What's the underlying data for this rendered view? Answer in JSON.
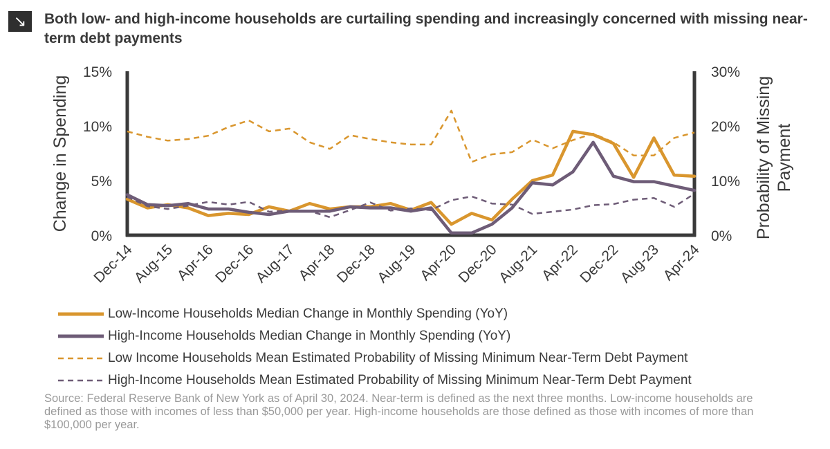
{
  "header": {
    "title": "Both low- and high-income households are curtailing spending and increasingly concerned with missing near-term debt payments",
    "icon": "arrow-down-right-icon"
  },
  "chart_data": {
    "type": "line",
    "title": "Both low- and high-income households are curtailing spending and increasingly concerned with missing near-term debt payments",
    "ylabel_left": "Change in Spending",
    "ylabel_right": "Probability of Missing Payment",
    "ylim_left": [
      0,
      15
    ],
    "ylim_right": [
      0,
      30
    ],
    "yticks_left": [
      "0%",
      "5%",
      "10%",
      "15%"
    ],
    "yticks_right": [
      "0%",
      "10%",
      "20%",
      "30%"
    ],
    "x_tick_labels": [
      "Dec-14",
      "Aug-15",
      "Apr-16",
      "Dec-16",
      "Aug-17",
      "Apr-18",
      "Dec-18",
      "Aug-19",
      "Apr-20",
      "Dec-20",
      "Aug-21",
      "Apr-22",
      "Dec-22",
      "Aug-23",
      "Apr-24"
    ],
    "x": [
      "Dec-14",
      "Apr-15",
      "Aug-15",
      "Dec-15",
      "Apr-16",
      "Aug-16",
      "Dec-16",
      "Apr-17",
      "Aug-17",
      "Dec-17",
      "Apr-18",
      "Aug-18",
      "Dec-18",
      "Apr-19",
      "Aug-19",
      "Dec-19",
      "Apr-20",
      "Aug-20",
      "Dec-20",
      "Apr-21",
      "Aug-21",
      "Dec-21",
      "Apr-22",
      "Aug-22",
      "Dec-22",
      "Apr-23",
      "Aug-23",
      "Dec-23",
      "Apr-24"
    ],
    "grid": false,
    "legend_position": "bottom",
    "series": [
      {
        "name": "Low-Income Households Median Change in Monthly Spending (YoY)",
        "axis": "left",
        "style": "solid",
        "color": "#d9962e",
        "values": [
          3.3,
          2.5,
          2.8,
          2.5,
          1.8,
          2.0,
          1.9,
          2.6,
          2.2,
          2.9,
          2.4,
          2.6,
          2.6,
          2.9,
          2.3,
          3.0,
          1.0,
          2.0,
          1.4,
          3.3,
          5.0,
          5.5,
          9.5,
          9.2,
          8.4,
          5.3,
          8.9,
          5.5,
          5.4
        ]
      },
      {
        "name": "High-Income Households Median Change in Monthly Spending (YoY)",
        "axis": "left",
        "style": "solid",
        "color": "#6e5c77",
        "values": [
          3.7,
          2.8,
          2.7,
          2.9,
          2.4,
          2.4,
          2.1,
          1.9,
          2.2,
          2.2,
          2.2,
          2.6,
          2.5,
          2.5,
          2.2,
          2.5,
          0.2,
          0.2,
          1.0,
          2.5,
          4.8,
          4.6,
          5.8,
          8.5,
          5.4,
          4.9,
          4.9,
          4.5,
          4.1
        ]
      },
      {
        "name": "Low Income Households Mean Estimated Probability of Missing Minimum Near-Term Debt Payment",
        "axis": "right",
        "style": "dashed",
        "color": "#d9962e",
        "values": [
          19.0,
          18.0,
          17.3,
          17.6,
          18.2,
          19.8,
          21.0,
          19.0,
          19.5,
          17.0,
          15.8,
          18.3,
          17.6,
          17.0,
          16.6,
          16.6,
          22.8,
          13.4,
          14.8,
          15.2,
          17.5,
          15.9,
          17.4,
          18.6,
          17.0,
          14.6,
          14.6,
          17.8,
          18.8
        ]
      },
      {
        "name": "High-Income Households Mean Estimated Probability of Missing Minimum Near-Term Debt Payment",
        "axis": "right",
        "style": "dashed",
        "color": "#6e5c77",
        "values": [
          7.0,
          5.3,
          4.8,
          5.4,
          6.1,
          5.6,
          6.1,
          4.3,
          4.5,
          4.4,
          3.3,
          4.6,
          6.0,
          4.5,
          4.9,
          4.6,
          6.4,
          7.1,
          5.8,
          5.6,
          3.9,
          4.3,
          4.7,
          5.5,
          5.7,
          6.5,
          6.8,
          5.2,
          7.6
        ]
      }
    ]
  },
  "source": {
    "text": "Source: Federal Reserve Bank of New York as of April 30, 2024. Near-term is defined as the next three months. Low-income households are defined as those with incomes of less than $50,000 per year. High-income households are those defined as those with incomes of more than $100,000 per year."
  }
}
